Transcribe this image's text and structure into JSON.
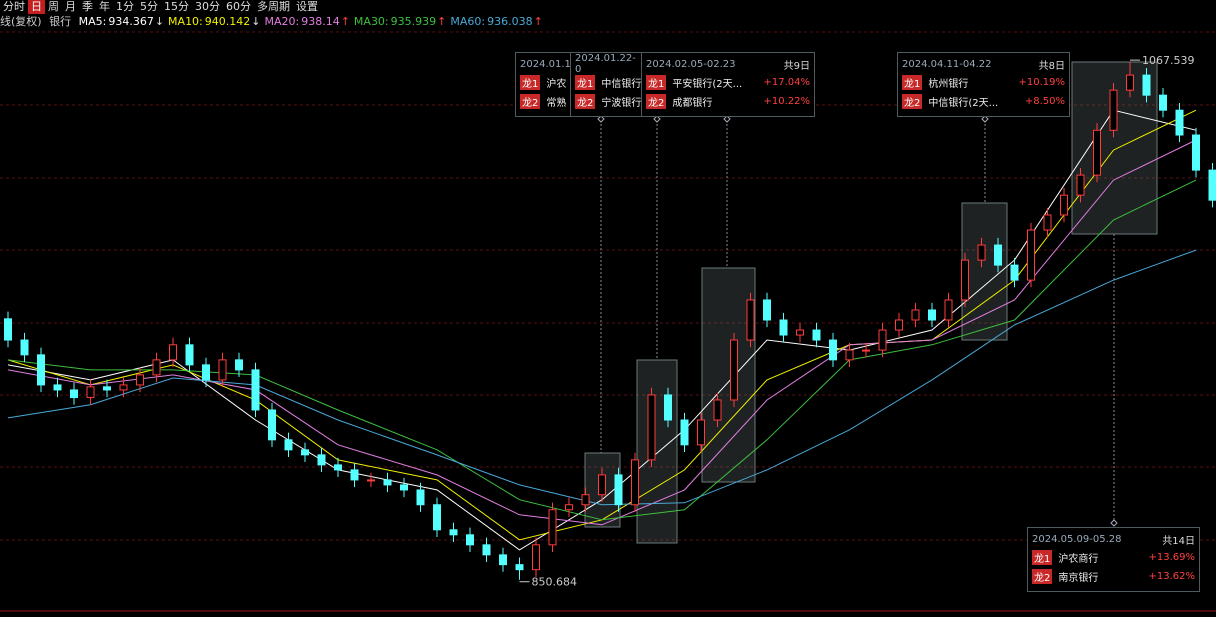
{
  "toolbar": {
    "items": [
      "分时",
      "日",
      "周",
      "月",
      "季",
      "年",
      "1分",
      "5分",
      "15分",
      "30分",
      "60分",
      "多周期",
      "设置"
    ],
    "selected": 1
  },
  "header": {
    "title": "线(复权)",
    "name": "银行"
  },
  "chart_data": {
    "type": "candlestick",
    "open": [
      960,
      951.1,
      944.9,
      932.3,
      930.2,
      927.0,
      931.5,
      930.2,
      932.3,
      936.5,
      942.8,
      949.1,
      940.7,
      934.4,
      942.8,
      938.6,
      921.8,
      909.3,
      905.1,
      903.0,
      898.8,
      896.7,
      892.5,
      892.5,
      890.4,
      888.3,
      882.1,
      871.6,
      869.5,
      865.3,
      861.1,
      857.0,
      854.9,
      865.3,
      880.0,
      882.1,
      886.3,
      894.6,
      882.1,
      900.9,
      928.1,
      917.6,
      907.2,
      917.6,
      926.0,
      951.1,
      967.9,
      959.5,
      953.2,
      955.3,
      951.1,
      942.8,
      946.9,
      946.9,
      955.3,
      959.5,
      963.7,
      959.5,
      967.9,
      984.6,
      990.9,
      982.5,
      976.2,
      997.2,
      1003.5,
      1011.8,
      1020.2,
      1039.0,
      1055.8,
      1062.1,
      1053.7,
      1047.4,
      1037.0,
      1022.3
    ],
    "high": [
      963,
      954.1,
      947.9,
      935.3,
      933.2,
      934.5,
      934.5,
      935.3,
      939.5,
      945.8,
      952.1,
      952.1,
      943.7,
      945.8,
      945.8,
      941.6,
      924.8,
      912.3,
      908.1,
      906.0,
      901.8,
      899.7,
      895.5,
      895.5,
      893.4,
      891.3,
      885.1,
      874.6,
      872.5,
      868.3,
      864.1,
      860.0,
      868.3,
      883.0,
      885.1,
      889.3,
      897.6,
      897.6,
      903.9,
      931.1,
      931.1,
      920.6,
      920.6,
      929.0,
      954.1,
      970.9,
      970.9,
      962.5,
      958.3,
      958.3,
      954.1,
      949.9,
      949.9,
      958.3,
      962.5,
      966.7,
      966.7,
      970.9,
      987.6,
      993.9,
      993.9,
      985.5,
      1000.2,
      1006.5,
      1014.8,
      1023.2,
      1042.0,
      1058.8,
      1067.539,
      1065.1,
      1056.7,
      1050.4,
      1040.0,
      1025.3
    ],
    "low": [
      948.1,
      941.9,
      929.3,
      927.2,
      924.0,
      924.0,
      927.2,
      927.2,
      929.3,
      933.5,
      939.8,
      937.7,
      931.4,
      931.4,
      935.6,
      918.8,
      906.3,
      902.1,
      900.0,
      895.8,
      893.7,
      889.5,
      889.5,
      887.4,
      885.3,
      879.1,
      868.6,
      866.5,
      862.3,
      858.1,
      854.0,
      850.684,
      851.9,
      862.3,
      877.0,
      879.1,
      883.3,
      879.1,
      879.1,
      897.9,
      914.6,
      904.2,
      904.2,
      914.6,
      923.0,
      948.1,
      956.5,
      950.2,
      950.2,
      948.1,
      939.8,
      939.8,
      943.9,
      943.9,
      952.3,
      956.5,
      956.5,
      956.5,
      964.9,
      981.6,
      979.5,
      973.2,
      973.2,
      994.2,
      1000.5,
      1008.8,
      1017.2,
      1036.0,
      1052.8,
      1050.7,
      1044.4,
      1034.0,
      1019.3,
      1006.7
    ],
    "close": [
      951.1,
      944.9,
      932.3,
      930.2,
      927.0,
      931.5,
      930.2,
      932.3,
      936.5,
      942.8,
      949.1,
      940.7,
      934.4,
      942.8,
      938.6,
      921.8,
      909.3,
      905.1,
      903.0,
      898.8,
      896.7,
      892.5,
      892.5,
      890.4,
      888.3,
      882.1,
      871.6,
      869.5,
      865.3,
      861.1,
      857.0,
      854.9,
      865.3,
      880.0,
      882.1,
      886.3,
      894.6,
      882.1,
      900.9,
      928.1,
      917.6,
      907.2,
      917.6,
      926.0,
      951.1,
      967.9,
      959.5,
      953.2,
      955.3,
      951.1,
      942.8,
      946.9,
      946.9,
      955.3,
      959.5,
      963.7,
      959.5,
      967.9,
      984.6,
      990.9,
      982.5,
      976.2,
      997.2,
      1003.5,
      1011.8,
      1020.2,
      1039.0,
      1055.8,
      1062.1,
      1053.7,
      1047.4,
      1037.0,
      1022.3,
      1009.7
    ],
    "up_color": "#ff3c3c",
    "down_color": "#54ffff",
    "ylim": [
      838,
      1081
    ],
    "series": [
      {
        "name": "MA5:",
        "current": 934.367,
        "trend": "↓",
        "color": "#ffffff",
        "x": [
          0,
          5,
          10,
          15,
          20,
          26,
          31,
          36,
          41,
          46,
          51,
          56,
          61,
          67,
          72
        ],
        "values": [
          940.7,
          934.4,
          942.8,
          917.6,
          896.7,
          888.3,
          863.2,
          884.2,
          913.5,
          951.1,
          946.9,
          955.3,
          984.6,
          1047.4,
          1039.0
        ]
      },
      {
        "name": "MA10:",
        "current": 940.142,
        "trend": "↓",
        "color": "#f0f000",
        "x": [
          0,
          5,
          10,
          15,
          20,
          26,
          31,
          36,
          41,
          46,
          51,
          56,
          61,
          67,
          72
        ],
        "values": [
          942.8,
          932.3,
          940.7,
          926.0,
          900.9,
          892.5,
          867.4,
          875.8,
          896.7,
          934.4,
          949.1,
          951.1,
          976.2,
          1030.7,
          1047.4
        ]
      },
      {
        "name": "MA20:",
        "current": 938.14,
        "trend": "↑",
        "color": "#e27ee2",
        "x": [
          0,
          5,
          10,
          15,
          20,
          26,
          31,
          36,
          41,
          46,
          51,
          56,
          61,
          67,
          72
        ],
        "values": [
          938.6,
          932.3,
          936.5,
          930.2,
          907.2,
          894.6,
          877.9,
          873.7,
          888.3,
          926.0,
          949.1,
          951.1,
          967.9,
          1018.1,
          1034.9
        ]
      },
      {
        "name": "MA30:",
        "current": 935.939,
        "trend": "↑",
        "color": "#3fbf3f",
        "x": [
          0,
          5,
          10,
          15,
          20,
          26,
          31,
          36,
          41,
          46,
          51,
          56,
          61,
          67,
          72
        ],
        "values": [
          942.8,
          938.6,
          938.6,
          936.5,
          921.8,
          905.1,
          884.2,
          875.8,
          880.0,
          909.3,
          942.8,
          949.1,
          959.5,
          1001.4,
          1018.1
        ]
      },
      {
        "name": "MA60:",
        "current": 936.038,
        "trend": "↑",
        "color": "#4aa8d8",
        "x": [
          0,
          5,
          10,
          15,
          20,
          26,
          31,
          36,
          41,
          46,
          51,
          56,
          61,
          67,
          72
        ],
        "values": [
          918.5,
          924.0,
          935.2,
          932.3,
          917.6,
          903.0,
          890.4,
          882.1,
          882.9,
          896.7,
          913.5,
          934.4,
          957.4,
          976.2,
          988.8
        ]
      }
    ]
  },
  "annotations": [
    {
      "date": "2024.01.1",
      "leaders": [
        {
          "rank": "龙1",
          "name": "沪农"
        },
        {
          "rank": "龙2",
          "name": "常熟"
        }
      ]
    },
    {
      "date": "2024.01.22-0",
      "leaders": [
        {
          "rank": "龙1",
          "name": "中信银行"
        },
        {
          "rank": "龙2",
          "name": "宁波银行"
        }
      ]
    },
    {
      "date": "2024.02.05-02.23",
      "days": "共9日",
      "leaders": [
        {
          "rank": "龙1",
          "name": "平安银行(2天...",
          "change": "+17.04%"
        },
        {
          "rank": "龙2",
          "name": "成都银行",
          "change": "+10.22%"
        }
      ]
    },
    {
      "date": "2024.04.11-04.22",
      "days": "共8日",
      "leaders": [
        {
          "rank": "龙1",
          "name": "杭州银行",
          "change": "+10.19%"
        },
        {
          "rank": "龙2",
          "name": "中信银行(2天...",
          "change": "+8.50%"
        }
      ]
    },
    {
      "date": "2024.05.09-05.28",
      "days": "共14日",
      "leaders": [
        {
          "rank": "龙1",
          "name": "沪农商行",
          "change": "+13.69%"
        },
        {
          "rank": "龙2",
          "name": "南京银行",
          "change": "+13.62%"
        }
      ]
    }
  ]
}
